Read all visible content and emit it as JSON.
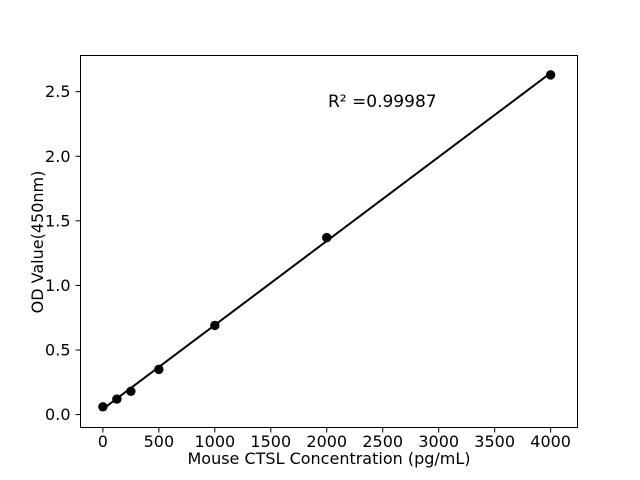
{
  "figure": {
    "background": "#ffffff",
    "foreground": "#000000"
  },
  "chart_data": {
    "type": "scatter",
    "title": "",
    "xlabel": "Mouse CTSL Concentration (pg/mL)",
    "ylabel": "OD Value(450nm)",
    "annotation": "R² =0.99987",
    "r_squared": 0.99987,
    "x": [
      0,
      125,
      250,
      500,
      1000,
      2000,
      4000
    ],
    "y": [
      0.06,
      0.12,
      0.18,
      0.35,
      0.69,
      1.37,
      2.63
    ],
    "trendline": {
      "x1": 0,
      "y1": 0.043,
      "x2": 4000,
      "y2": 2.645
    },
    "xticks": [
      0,
      500,
      1000,
      1500,
      2000,
      2500,
      3000,
      3500,
      4000
    ],
    "yticks": [
      0.0,
      0.5,
      1.0,
      1.5,
      2.0,
      2.5
    ],
    "xlim": [
      -200,
      4240
    ],
    "ylim": [
      -0.1,
      2.78
    ],
    "grid": false,
    "legend": "none",
    "marker_color": "#000000",
    "line_color": "#000000"
  }
}
